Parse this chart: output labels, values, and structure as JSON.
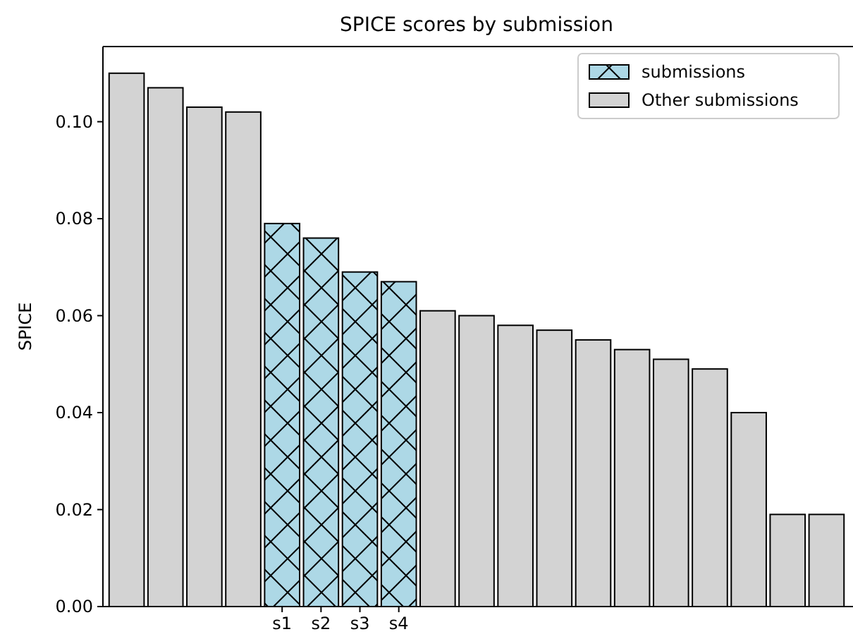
{
  "chart_data": {
    "type": "bar",
    "title": "SPICE scores by submission",
    "ylabel": "SPICE",
    "categories": [
      null,
      null,
      null,
      null,
      "s1",
      "s2",
      "s3",
      "s4",
      null,
      null,
      null,
      null,
      null,
      null,
      null,
      null,
      null,
      null,
      null
    ],
    "series": [
      {
        "name": "submissions",
        "color": "#add8e6",
        "values": [
          null,
          null,
          null,
          null,
          0.079,
          0.076,
          0.069,
          0.067,
          null,
          null,
          null,
          null,
          null,
          null,
          null,
          null,
          null,
          null,
          null
        ]
      },
      {
        "name": "Other submissions",
        "color": "#d3d3d3",
        "values": [
          0.11,
          0.107,
          0.103,
          0.102,
          null,
          null,
          null,
          null,
          0.061,
          0.06,
          0.058,
          0.057,
          0.055,
          0.053,
          0.051,
          0.049,
          0.04,
          0.019,
          0.019
        ]
      }
    ],
    "ylim": [
      0,
      0.1155
    ],
    "yticks": [
      {
        "value": 0,
        "label": "0.00"
      },
      {
        "value": 0.02,
        "label": "0.02"
      },
      {
        "value": 0.04,
        "label": "0.04"
      },
      {
        "value": 0.06,
        "label": "0.06"
      },
      {
        "value": 0.08,
        "label": "0.08"
      },
      {
        "value": 0.1,
        "label": "0.10"
      }
    ],
    "legend": "top right",
    "grid": false
  }
}
